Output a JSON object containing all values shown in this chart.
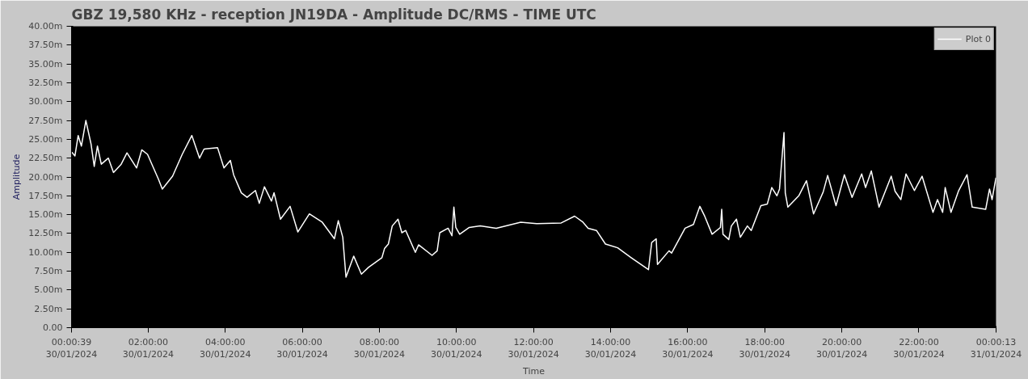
{
  "chart_data": {
    "type": "line",
    "title": "GBZ  19,580 KHz - reception JN19DA -  Amplitude DC/RMS   - TIME UTC",
    "xlabel": "Time",
    "ylabel": "Amplitude",
    "xlim": [
      "2024-01-30T00:00:39",
      "2024-01-31T00:00:13"
    ],
    "ylim": [
      0,
      40
    ],
    "xticks": [
      {
        "value": "2024-01-30T00:00:39",
        "label": "00:00:39\n30/01/2024"
      },
      {
        "value": "2024-01-30T02:00",
        "label": "02:00:00\n30/01/2024"
      },
      {
        "value": "2024-01-30T04:00",
        "label": "04:00:00\n30/01/2024"
      },
      {
        "value": "2024-01-30T06:00",
        "label": "06:00:00\n30/01/2024"
      },
      {
        "value": "2024-01-30T08:00",
        "label": "08:00:00\n30/01/2024"
      },
      {
        "value": "2024-01-30T10:00",
        "label": "10:00:00\n30/01/2024"
      },
      {
        "value": "2024-01-30T12:00",
        "label": "12:00:00\n30/01/2024"
      },
      {
        "value": "2024-01-30T14:00",
        "label": "14:00:00\n30/01/2024"
      },
      {
        "value": "2024-01-30T16:00",
        "label": "16:00:00\n30/01/2024"
      },
      {
        "value": "2024-01-30T18:00",
        "label": "18:00:00\n30/01/2024"
      },
      {
        "value": "2024-01-30T20:00",
        "label": "20:00:00\n30/01/2024"
      },
      {
        "value": "2024-01-30T22:00",
        "label": "22:00:00\n30/01/2024"
      },
      {
        "value": "2024-01-31T00:00:13",
        "label": "00:00:13\n31/01/2024"
      }
    ],
    "yticks": [
      {
        "value": 0,
        "label": "0.00"
      },
      {
        "value": 2.5,
        "label": "2.50m"
      },
      {
        "value": 5,
        "label": "5.00m"
      },
      {
        "value": 7.5,
        "label": "7.50m"
      },
      {
        "value": 10,
        "label": "10.00m"
      },
      {
        "value": 12.5,
        "label": "12.50m"
      },
      {
        "value": 15,
        "label": "15.00m"
      },
      {
        "value": 17.5,
        "label": "17.50m"
      },
      {
        "value": 20,
        "label": "20.00m"
      },
      {
        "value": 22.5,
        "label": "22.50m"
      },
      {
        "value": 25,
        "label": "25.00m"
      },
      {
        "value": 27.5,
        "label": "27.50m"
      },
      {
        "value": 30,
        "label": "30.00m"
      },
      {
        "value": 32.5,
        "label": "32.50m"
      },
      {
        "value": 35,
        "label": "35.00m"
      },
      {
        "value": 37.5,
        "label": "37.50m"
      },
      {
        "value": 40,
        "label": "40.00m"
      }
    ],
    "grid": false,
    "legend": "top right",
    "marker": "none",
    "line_style": "solid",
    "series": [
      {
        "name": "Plot 0",
        "color": "#ffffff",
        "x": [
          "2024-01-30T00:01",
          "2024-01-30T00:06",
          "2024-01-30T00:11",
          "2024-01-30T00:16",
          "2024-01-30T00:23",
          "2024-01-30T00:31",
          "2024-01-30T00:36",
          "2024-01-30T00:41",
          "2024-01-30T00:47",
          "2024-01-30T00:58",
          "2024-01-30T01:06",
          "2024-01-30T01:18",
          "2024-01-30T01:27",
          "2024-01-30T01:42",
          "2024-01-30T01:50",
          "2024-01-30T01:59",
          "2024-01-30T02:16",
          "2024-01-30T02:22",
          "2024-01-30T02:38",
          "2024-01-30T02:53",
          "2024-01-30T03:08",
          "2024-01-30T03:20",
          "2024-01-30T03:27",
          "2024-01-30T03:48",
          "2024-01-30T03:58",
          "2024-01-30T04:08",
          "2024-01-30T04:13",
          "2024-01-30T04:25",
          "2024-01-30T04:34",
          "2024-01-30T04:47",
          "2024-01-30T04:53",
          "2024-01-30T05:01",
          "2024-01-30T05:12",
          "2024-01-30T05:16",
          "2024-01-30T05:26",
          "2024-01-30T05:41",
          "2024-01-30T05:53",
          "2024-01-30T06:11",
          "2024-01-30T06:31",
          "2024-01-30T06:50",
          "2024-01-30T06:56",
          "2024-01-30T07:03",
          "2024-01-30T07:08",
          "2024-01-30T07:20",
          "2024-01-30T07:32",
          "2024-01-30T07:43",
          "2024-01-30T08:04",
          "2024-01-30T08:08",
          "2024-01-30T08:14",
          "2024-01-30T08:20",
          "2024-01-30T08:29",
          "2024-01-30T08:35",
          "2024-01-30T08:41",
          "2024-01-30T08:56",
          "2024-01-30T09:01",
          "2024-01-30T09:22",
          "2024-01-30T09:30",
          "2024-01-30T09:34",
          "2024-01-30T09:47",
          "2024-01-30T09:53",
          "2024-01-30T09:56",
          "2024-01-30T09:59",
          "2024-01-30T10:05",
          "2024-01-30T10:20",
          "2024-01-30T10:37",
          "2024-01-30T11:02",
          "2024-01-30T11:40",
          "2024-01-30T12:05",
          "2024-01-30T12:43",
          "2024-01-30T13:04",
          "2024-01-30T13:17",
          "2024-01-30T13:25",
          "2024-01-30T13:38",
          "2024-01-30T13:52",
          "2024-01-30T14:11",
          "2024-01-30T14:32",
          "2024-01-30T14:59",
          "2024-01-30T15:04",
          "2024-01-30T15:11",
          "2024-01-30T15:13",
          "2024-01-30T15:31",
          "2024-01-30T15:35",
          "2024-01-30T15:56",
          "2024-01-30T16:09",
          "2024-01-30T16:19",
          "2024-01-30T16:26",
          "2024-01-30T16:38",
          "2024-01-30T16:51",
          "2024-01-30T16:53",
          "2024-01-30T16:55",
          "2024-01-30T17:04",
          "2024-01-30T17:08",
          "2024-01-30T17:16",
          "2024-01-30T17:22",
          "2024-01-30T17:33",
          "2024-01-30T17:39",
          "2024-01-30T17:54",
          "2024-01-30T18:04",
          "2024-01-30T18:11",
          "2024-01-30T18:19",
          "2024-01-30T18:23",
          "2024-01-30T18:30",
          "2024-01-30T18:32",
          "2024-01-30T18:36",
          "2024-01-30T18:53",
          "2024-01-30T19:05",
          "2024-01-30T19:16",
          "2024-01-30T19:31",
          "2024-01-30T19:38",
          "2024-01-30T19:51",
          "2024-01-30T20:04",
          "2024-01-30T20:16",
          "2024-01-30T20:31",
          "2024-01-30T20:37",
          "2024-01-30T20:46",
          "2024-01-30T20:58",
          "2024-01-30T21:17",
          "2024-01-30T21:23",
          "2024-01-30T21:32",
          "2024-01-30T21:40",
          "2024-01-30T21:53",
          "2024-01-30T22:05",
          "2024-01-30T22:22",
          "2024-01-30T22:29",
          "2024-01-30T22:37",
          "2024-01-30T22:41",
          "2024-01-30T22:50",
          "2024-01-30T23:02",
          "2024-01-30T23:15",
          "2024-01-30T23:23",
          "2024-01-30T23:44",
          "2024-01-30T23:50",
          "2024-01-30T23:54",
          "2024-01-31T00:00"
        ],
        "values": [
          23.3,
          22.8,
          25.5,
          24.1,
          27.5,
          24.4,
          21.4,
          24.1,
          21.7,
          22.5,
          20.6,
          21.7,
          23.2,
          21.2,
          23.6,
          23.0,
          19.7,
          18.4,
          20.1,
          23.0,
          25.5,
          22.5,
          23.7,
          23.9,
          21.2,
          22.2,
          20.3,
          17.9,
          17.3,
          18.2,
          16.5,
          18.7,
          16.8,
          17.9,
          14.4,
          16.1,
          12.7,
          15.1,
          14.0,
          11.8,
          14.2,
          12.0,
          6.7,
          9.5,
          7.1,
          8.0,
          9.3,
          10.5,
          11.1,
          13.5,
          14.4,
          12.6,
          12.9,
          10.0,
          11.0,
          9.6,
          10.2,
          12.6,
          13.2,
          12.2,
          16.0,
          13.3,
          12.4,
          13.3,
          13.5,
          13.2,
          14.0,
          13.8,
          13.9,
          14.8,
          14.0,
          13.2,
          12.9,
          11.1,
          10.6,
          9.3,
          7.7,
          11.3,
          11.8,
          8.4,
          10.2,
          9.9,
          13.2,
          13.7,
          16.1,
          14.9,
          12.4,
          13.3,
          15.7,
          12.4,
          11.7,
          13.5,
          14.4,
          12.0,
          13.5,
          12.9,
          16.2,
          16.4,
          18.6,
          17.5,
          18.4,
          25.9,
          17.9,
          16.0,
          17.5,
          19.5,
          15.1,
          18.0,
          20.2,
          16.2,
          20.3,
          17.3,
          20.4,
          18.6,
          20.8,
          16.0,
          20.1,
          18.1,
          17.0,
          20.4,
          18.2,
          20.1,
          15.3,
          17.0,
          15.3,
          18.6,
          15.3,
          18.2,
          20.3,
          16.0,
          15.7,
          18.4,
          17.0,
          19.9
        ]
      }
    ]
  }
}
